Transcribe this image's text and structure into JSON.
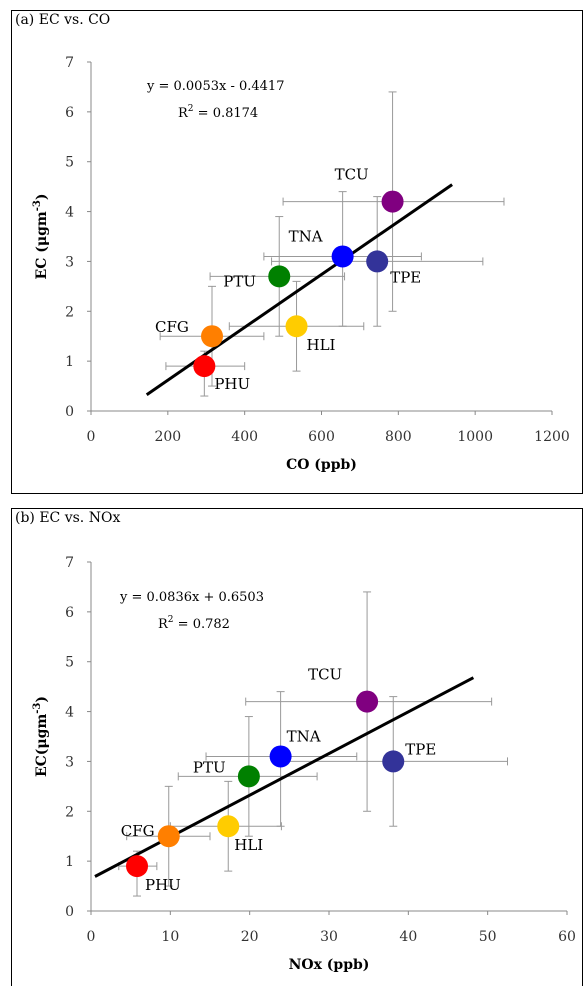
{
  "chart_data": [
    {
      "panel_title": "(a) EC vs. CO",
      "type": "scatter",
      "xlabel": "CO (ppb)",
      "ylabel_prefix": "EC (",
      "ylabel_unit": "μgm",
      "ylabel_exp": "-3",
      "ylabel_suffix": ")",
      "xlim": [
        0,
        1200
      ],
      "ylim": [
        0,
        7
      ],
      "xticks": [
        0,
        200,
        400,
        600,
        800,
        1000,
        1200
      ],
      "yticks": [
        0,
        1,
        2,
        3,
        4,
        5,
        6,
        7
      ],
      "grid": false,
      "equation": "y = 0.0053x - 0.4417",
      "r2_prefix": "R",
      "r2_exp": "2",
      "r2_value": " = 0.8174",
      "trendline": {
        "slope": 0.0053,
        "intercept": -0.4417,
        "x_range": [
          145,
          940
        ]
      },
      "points": [
        {
          "label": "PHU",
          "x": 295,
          "y": 0.9,
          "xerr": [
            195,
            400
          ],
          "yerr": [
            0.3,
            1.2
          ],
          "color": "#ff0000"
        },
        {
          "label": "CFG",
          "x": 315,
          "y": 1.5,
          "xerr": [
            180,
            450
          ],
          "yerr": [
            0.5,
            2.5
          ],
          "color": "#ff7f00"
        },
        {
          "label": "HLI",
          "x": 535,
          "y": 1.7,
          "xerr": [
            360,
            710
          ],
          "yerr": [
            0.8,
            2.6
          ],
          "color": "#ffcc00"
        },
        {
          "label": "PTU",
          "x": 490,
          "y": 2.7,
          "xerr": [
            310,
            660
          ],
          "yerr": [
            1.5,
            3.9
          ],
          "color": "#008000"
        },
        {
          "label": "TNA",
          "x": 655,
          "y": 3.1,
          "xerr": [
            450,
            860
          ],
          "yerr": [
            1.7,
            4.4
          ],
          "color": "#0000ff"
        },
        {
          "label": "TPE",
          "x": 745,
          "y": 3.0,
          "xerr": [
            470,
            1020
          ],
          "yerr": [
            1.7,
            4.3
          ],
          "color": "#333399"
        },
        {
          "label": "TCU",
          "x": 785,
          "y": 4.2,
          "xerr": [
            500,
            1075
          ],
          "yerr": [
            2.0,
            6.4
          ],
          "color": "#800080"
        }
      ]
    },
    {
      "panel_title": "(b) EC vs. NOx",
      "type": "scatter",
      "xlabel": "NOx (ppb)",
      "ylabel_prefix": "EC(",
      "ylabel_unit": "μgm",
      "ylabel_exp": "-3",
      "ylabel_suffix": ")",
      "xlim": [
        0,
        60
      ],
      "ylim": [
        0,
        7
      ],
      "xticks": [
        0,
        10,
        20,
        30,
        40,
        50,
        60
      ],
      "yticks": [
        0,
        1,
        2,
        3,
        4,
        5,
        6,
        7
      ],
      "grid": false,
      "equation": "y = 0.0836x + 0.6503",
      "r2_prefix": "R",
      "r2_exp": "2",
      "r2_value": " = 0.782",
      "trendline": {
        "slope": 0.0836,
        "intercept": 0.6503,
        "x_range": [
          0.5,
          48.2
        ]
      },
      "points": [
        {
          "label": "PHU",
          "x": 5.8,
          "y": 0.9,
          "xerr": [
            3.5,
            8.3
          ],
          "yerr": [
            0.3,
            1.2
          ],
          "color": "#ff0000"
        },
        {
          "label": "CFG",
          "x": 9.8,
          "y": 1.5,
          "xerr": [
            4.5,
            15.0
          ],
          "yerr": [
            0.5,
            2.5
          ],
          "color": "#ff7f00"
        },
        {
          "label": "HLI",
          "x": 17.3,
          "y": 1.7,
          "xerr": [
            10.0,
            24.0
          ],
          "yerr": [
            0.8,
            2.6
          ],
          "color": "#ffcc00"
        },
        {
          "label": "PTU",
          "x": 19.9,
          "y": 2.7,
          "xerr": [
            11.0,
            28.5
          ],
          "yerr": [
            1.5,
            3.9
          ],
          "color": "#008000"
        },
        {
          "label": "TNA",
          "x": 23.9,
          "y": 3.1,
          "xerr": [
            14.5,
            33.5
          ],
          "yerr": [
            1.7,
            4.4
          ],
          "color": "#0000ff"
        },
        {
          "label": "TCU",
          "x": 34.8,
          "y": 4.2,
          "xerr": [
            19.5,
            50.5
          ],
          "yerr": [
            2.0,
            6.4
          ],
          "color": "#800080"
        },
        {
          "label": "TPE",
          "x": 38.1,
          "y": 3.0,
          "xerr": [
            24.0,
            52.5
          ],
          "yerr": [
            1.7,
            4.3
          ],
          "color": "#333399"
        }
      ]
    }
  ]
}
